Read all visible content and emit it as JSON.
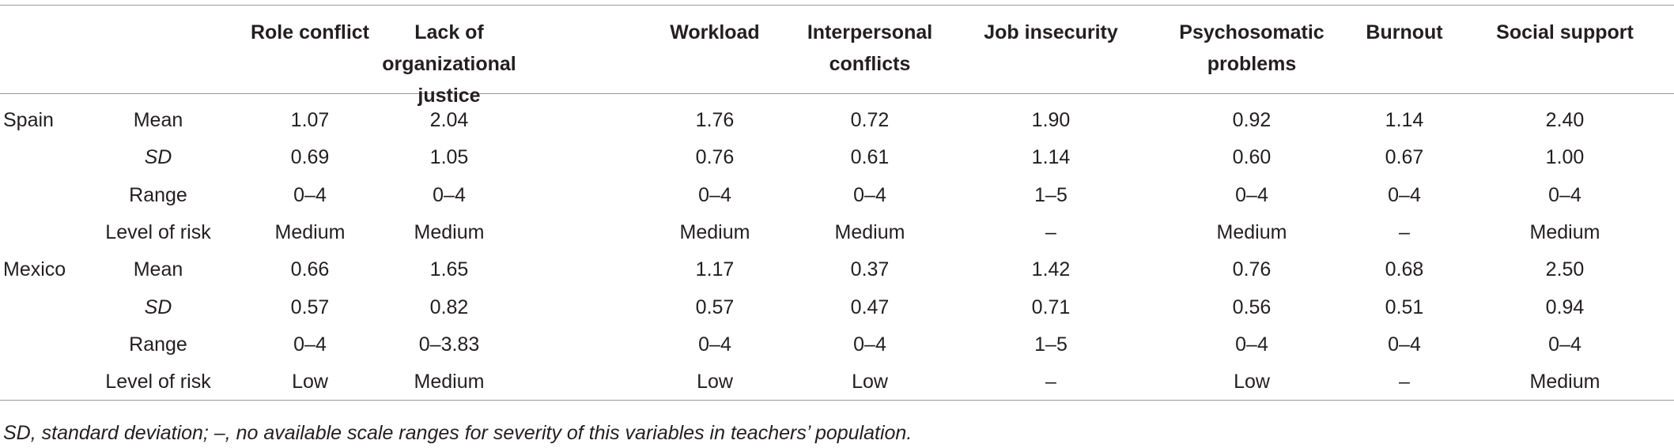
{
  "header": {
    "columns": [
      "Role conflict",
      "Lack of organizational justice",
      "Workload",
      "Interpersonal conflicts",
      "Job insecurity",
      "Psychosomatic problems",
      "Burnout",
      "Social support"
    ]
  },
  "groups": [
    {
      "country": "Spain",
      "rows": [
        {
          "label": "Mean",
          "values": [
            "1.07",
            "2.04",
            "1.76",
            "0.72",
            "1.90",
            "0.92",
            "1.14",
            "2.40"
          ]
        },
        {
          "label": "SD",
          "values": [
            "0.69",
            "1.05",
            "0.76",
            "0.61",
            "1.14",
            "0.60",
            "0.67",
            "1.00"
          ]
        },
        {
          "label": "Range",
          "values": [
            "0–4",
            "0–4",
            "0–4",
            "0–4",
            "1–5",
            "0–4",
            "0–4",
            "0–4"
          ]
        },
        {
          "label": "Level of risk",
          "values": [
            "Medium",
            "Medium",
            "Medium",
            "Medium",
            "–",
            "Medium",
            "–",
            "Medium"
          ]
        }
      ]
    },
    {
      "country": "Mexico",
      "rows": [
        {
          "label": "Mean",
          "values": [
            "0.66",
            "1.65",
            "1.17",
            "0.37",
            "1.42",
            "0.76",
            "0.68",
            "2.50"
          ]
        },
        {
          "label": "SD",
          "values": [
            "0.57",
            "0.82",
            "0.57",
            "0.47",
            "0.71",
            "0.56",
            "0.51",
            "0.94"
          ]
        },
        {
          "label": "Range",
          "values": [
            "0–4",
            "0–3.83",
            "0–4",
            "0–4",
            "1–5",
            "0–4",
            "0–4",
            "0–4"
          ]
        },
        {
          "label": "Level of risk",
          "values": [
            "Low",
            "Medium",
            "Low",
            "Low",
            "–",
            "Low",
            "–",
            "Medium"
          ]
        }
      ]
    }
  ],
  "footnote": {
    "abbr": "SD",
    "text": ", standard deviation; –, no available scale ranges for severity of this variables in teachers’ population."
  }
}
